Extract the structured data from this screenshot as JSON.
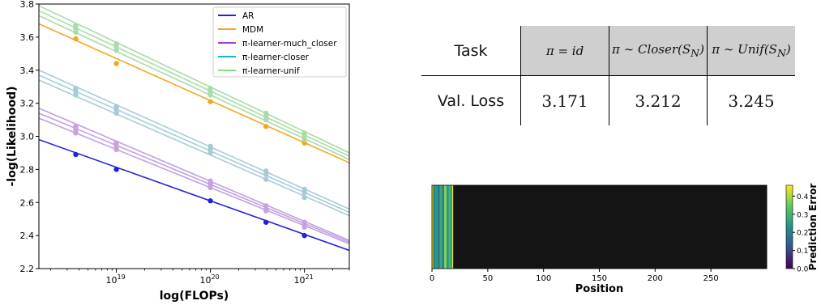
{
  "chart_data": [
    {
      "type": "line",
      "xscale": "log",
      "xlabel": "log(FLOPs)",
      "ylabel": "-log(Likelihood)",
      "xlim": [
        1.5e+18,
        3e+21
      ],
      "ylim": [
        2.2,
        3.8
      ],
      "x_ticks": [
        {
          "value": 1e+19,
          "base": "10",
          "exp": "19"
        },
        {
          "value": 1e+20,
          "base": "10",
          "exp": "20"
        },
        {
          "value": 1e+21,
          "base": "10",
          "exp": "21"
        }
      ],
      "y_ticks": [
        "2.2",
        "2.4",
        "2.6",
        "2.8",
        "3.0",
        "3.2",
        "3.4",
        "3.6",
        "3.8"
      ],
      "grid": false,
      "legend_position": "top-right",
      "legend": [
        {
          "label": "AR",
          "color": "#2222dd"
        },
        {
          "label": "MDM",
          "color": "#f5a623"
        },
        {
          "label": "π-learner-much_closer",
          "color": "#a040c8"
        },
        {
          "label": "π-learner-closer",
          "color": "#1aafd8"
        },
        {
          "label": "π-learner-unif",
          "color": "#7ee07e"
        }
      ],
      "fits": [
        {
          "color": "#2222dd",
          "x": [
            1.5e+18,
            3e+21
          ],
          "y": [
            2.98,
            2.31
          ]
        },
        {
          "color": "#f5a623",
          "x": [
            1.5e+18,
            3e+21
          ],
          "y": [
            3.68,
            2.84
          ]
        },
        {
          "color": "#c0a0e0",
          "x": [
            1.5e+18,
            3e+21
          ],
          "y": [
            3.17,
            2.37
          ]
        },
        {
          "color": "#c0a0e0",
          "x": [
            1.5e+18,
            3e+21
          ],
          "y": [
            3.14,
            2.36
          ]
        },
        {
          "color": "#c0a0e0",
          "x": [
            1.5e+18,
            3e+21
          ],
          "y": [
            3.11,
            2.35
          ]
        },
        {
          "color": "#a8ccd8",
          "x": [
            1.5e+18,
            3e+21
          ],
          "y": [
            3.4,
            2.56
          ]
        },
        {
          "color": "#a8ccd8",
          "x": [
            1.5e+18,
            3e+21
          ],
          "y": [
            3.37,
            2.54
          ]
        },
        {
          "color": "#a8ccd8",
          "x": [
            1.5e+18,
            3e+21
          ],
          "y": [
            3.34,
            2.52
          ]
        },
        {
          "color": "#a8dca8",
          "x": [
            1.5e+18,
            3e+21
          ],
          "y": [
            3.79,
            2.9
          ]
        },
        {
          "color": "#a8dca8",
          "x": [
            1.5e+18,
            3e+21
          ],
          "y": [
            3.76,
            2.88
          ]
        },
        {
          "color": "#a8dca8",
          "x": [
            1.5e+18,
            3e+21
          ],
          "y": [
            3.73,
            2.86
          ]
        }
      ],
      "series": [
        {
          "color": "#2222dd",
          "x": [
            3.7e+18,
            1e+19,
            1e+20,
            3.9e+20,
            1e+21
          ],
          "y": [
            2.89,
            2.8,
            2.61,
            2.48,
            2.4
          ]
        },
        {
          "color": "#f5a623",
          "x": [
            3.7e+18,
            1e+19,
            1e+20,
            3.9e+20,
            1e+21
          ],
          "y": [
            3.59,
            3.44,
            3.21,
            3.06,
            2.96
          ]
        },
        {
          "color": "#c6a2e0",
          "x": [
            3.7e+18,
            1e+19,
            1e+20,
            3.9e+20,
            1e+21
          ],
          "y": [
            3.06,
            2.96,
            2.73,
            2.58,
            2.48
          ]
        },
        {
          "color": "#c6a2e0",
          "x": [
            3.7e+18,
            1e+19,
            1e+20,
            3.9e+20,
            1e+21
          ],
          "y": [
            3.04,
            2.94,
            2.71,
            2.56,
            2.47
          ]
        },
        {
          "color": "#c6a2e0",
          "x": [
            3.7e+18,
            1e+19,
            1e+20,
            3.9e+20,
            1e+21
          ],
          "y": [
            3.02,
            2.92,
            2.69,
            2.55,
            2.45
          ]
        },
        {
          "color": "#a6cad6",
          "x": [
            3.7e+18,
            1e+19,
            1e+20,
            3.9e+20,
            1e+21
          ],
          "y": [
            3.29,
            3.18,
            2.94,
            2.79,
            2.68
          ]
        },
        {
          "color": "#a6cad6",
          "x": [
            3.7e+18,
            1e+19,
            1e+20,
            3.9e+20,
            1e+21
          ],
          "y": [
            3.27,
            3.16,
            2.92,
            2.77,
            2.66
          ]
        },
        {
          "color": "#a6cad6",
          "x": [
            3.7e+18,
            1e+19,
            1e+20,
            3.9e+20,
            1e+21
          ],
          "y": [
            3.25,
            3.14,
            2.9,
            2.74,
            2.63
          ]
        },
        {
          "color": "#a8dca8",
          "x": [
            3.7e+18,
            1e+19,
            1e+20,
            3.9e+20,
            1e+21
          ],
          "y": [
            3.67,
            3.56,
            3.29,
            3.14,
            3.02
          ]
        },
        {
          "color": "#a8dca8",
          "x": [
            3.7e+18,
            1e+19,
            1e+20,
            3.9e+20,
            1e+21
          ],
          "y": [
            3.65,
            3.54,
            3.27,
            3.12,
            3.0
          ]
        },
        {
          "color": "#a8dca8",
          "x": [
            3.7e+18,
            1e+19,
            1e+20,
            3.9e+20,
            1e+21
          ],
          "y": [
            3.63,
            3.52,
            3.25,
            3.1,
            2.98
          ]
        }
      ]
    },
    {
      "type": "table",
      "header": [
        "Task",
        "π = id",
        "π ∼ Closer(S_N)",
        "π ∼ Unif(S_N)"
      ],
      "header_display": [
        {
          "pre": "π = id",
          "sub": "",
          "post": ""
        },
        {
          "pre": "π ∼ Closer(S",
          "sub": "N",
          "post": ")"
        },
        {
          "pre": "π ∼ Unif(S",
          "sub": "N",
          "post": ")"
        }
      ],
      "row_label": "Val. Loss",
      "values": [
        "3.171",
        "3.212",
        "3.245"
      ],
      "header_fill": "#cfcfcf"
    },
    {
      "type": "heatmap",
      "xlabel": "Position",
      "colorbar_label": "Prediction Error",
      "xlim": [
        0,
        300
      ],
      "x_ticks": [
        "0",
        "50",
        "100",
        "150",
        "200",
        "250"
      ],
      "x_tick_values": [
        0,
        50,
        100,
        150,
        200,
        250
      ],
      "colorbar_range": [
        0.0,
        0.46
      ],
      "colorbar_ticks": [
        "0.0",
        "0.1",
        "0.2",
        "0.3",
        "0.4"
      ],
      "colorbar_tick_values": [
        0.0,
        0.1,
        0.2,
        0.3,
        0.4
      ],
      "colormap": "viridis",
      "background_value_color": "#141414",
      "cells": [
        {
          "from": 0,
          "to": 1,
          "value": 0.45
        },
        {
          "from": 1,
          "to": 3,
          "value": 0.2
        },
        {
          "from": 3,
          "to": 5,
          "value": 0.25
        },
        {
          "from": 5,
          "to": 7,
          "value": 0.18
        },
        {
          "from": 7,
          "to": 9,
          "value": 0.28
        },
        {
          "from": 9,
          "to": 11,
          "value": 0.2
        },
        {
          "from": 11,
          "to": 13,
          "value": 0.38
        },
        {
          "from": 13,
          "to": 15,
          "value": 0.24
        },
        {
          "from": 15,
          "to": 17,
          "value": 0.3
        },
        {
          "from": 17,
          "to": 18,
          "value": 0.22
        },
        {
          "from": 18,
          "to": 19,
          "value": 0.45
        },
        {
          "from": 19,
          "to": 300,
          "value": 0.0
        }
      ]
    }
  ]
}
